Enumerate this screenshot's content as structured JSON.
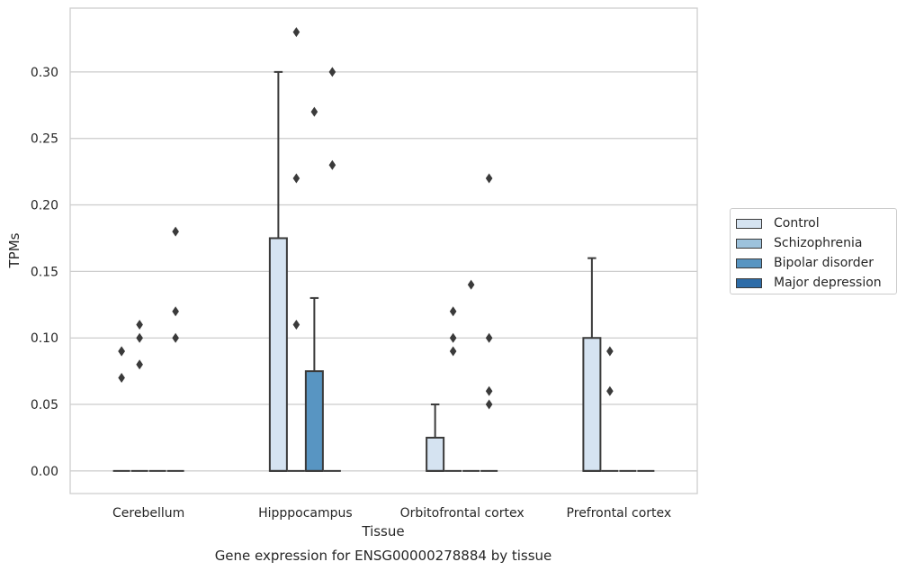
{
  "chart_data": {
    "type": "box",
    "title": "Gene expression for ENSG00000278884 by tissue",
    "xlabel": "Tissue",
    "ylabel": "TPMs",
    "ylim": [
      -0.017,
      0.348
    ],
    "yticks": [
      0.0,
      0.05,
      0.1,
      0.15,
      0.2,
      0.25,
      0.3
    ],
    "ytick_labels": [
      "0.00",
      "0.05",
      "0.10",
      "0.15",
      "0.20",
      "0.25",
      "0.30"
    ],
    "grid": true,
    "legend_position": "right",
    "categories": [
      "Cerebellum",
      "Hipppocampus",
      "Orbitofrontal cortex",
      "Prefrontal cortex"
    ],
    "series": [
      {
        "name": "Control",
        "color": "#d5e3f1",
        "boxes": [
          {
            "q1": 0.0,
            "median": 0.0,
            "q3": 0.0,
            "whisker_low": 0.0,
            "whisker_high": 0.0,
            "outliers": [
              0.07,
              0.09,
              0.09
            ]
          },
          {
            "q1": 0.0,
            "median": 0.0,
            "q3": 0.175,
            "whisker_low": 0.0,
            "whisker_high": 0.3,
            "outliers": []
          },
          {
            "q1": 0.0,
            "median": 0.0,
            "q3": 0.025,
            "whisker_low": 0.0,
            "whisker_high": 0.05,
            "outliers": []
          },
          {
            "q1": 0.0,
            "median": 0.0,
            "q3": 0.1,
            "whisker_low": 0.0,
            "whisker_high": 0.16,
            "outliers": []
          }
        ]
      },
      {
        "name": "Schizophrenia",
        "color": "#9dc2dc",
        "boxes": [
          {
            "q1": 0.0,
            "median": 0.0,
            "q3": 0.0,
            "whisker_low": 0.0,
            "whisker_high": 0.0,
            "outliers": [
              0.08,
              0.1,
              0.11
            ]
          },
          {
            "q1": 0.0,
            "median": 0.0,
            "q3": 0.0,
            "whisker_low": 0.0,
            "whisker_high": 0.0,
            "outliers": [
              0.11,
              0.22,
              0.33
            ]
          },
          {
            "q1": 0.0,
            "median": 0.0,
            "q3": 0.0,
            "whisker_low": 0.0,
            "whisker_high": 0.0,
            "outliers": [
              0.09,
              0.1,
              0.12
            ]
          },
          {
            "q1": 0.0,
            "median": 0.0,
            "q3": 0.0,
            "whisker_low": 0.0,
            "whisker_high": 0.0,
            "outliers": [
              0.06,
              0.09
            ]
          }
        ]
      },
      {
        "name": "Bipolar disorder",
        "color": "#5895c2",
        "boxes": [
          {
            "q1": 0.0,
            "median": 0.0,
            "q3": 0.0,
            "whisker_low": 0.0,
            "whisker_high": 0.0,
            "outliers": []
          },
          {
            "q1": 0.0,
            "median": 0.0,
            "q3": 0.075,
            "whisker_low": 0.0,
            "whisker_high": 0.13,
            "outliers": [
              0.27
            ]
          },
          {
            "q1": 0.0,
            "median": 0.0,
            "q3": 0.0,
            "whisker_low": 0.0,
            "whisker_high": 0.0,
            "outliers": [
              0.14
            ]
          },
          {
            "q1": 0.0,
            "median": 0.0,
            "q3": 0.0,
            "whisker_low": 0.0,
            "whisker_high": 0.0,
            "outliers": []
          }
        ]
      },
      {
        "name": "Major depression",
        "color": "#2d6ca8",
        "boxes": [
          {
            "q1": 0.0,
            "median": 0.0,
            "q3": 0.0,
            "whisker_low": 0.0,
            "whisker_high": 0.0,
            "outliers": [
              0.1,
              0.12,
              0.18
            ]
          },
          {
            "q1": 0.0,
            "median": 0.0,
            "q3": 0.0,
            "whisker_low": 0.0,
            "whisker_high": 0.0,
            "outliers": [
              0.23,
              0.3
            ]
          },
          {
            "q1": 0.0,
            "median": 0.0,
            "q3": 0.0,
            "whisker_low": 0.0,
            "whisker_high": 0.0,
            "outliers": [
              0.05,
              0.06,
              0.1,
              0.22
            ]
          },
          {
            "q1": 0.0,
            "median": 0.0,
            "q3": 0.0,
            "whisker_low": 0.0,
            "whisker_high": 0.0,
            "outliers": []
          }
        ]
      }
    ]
  }
}
